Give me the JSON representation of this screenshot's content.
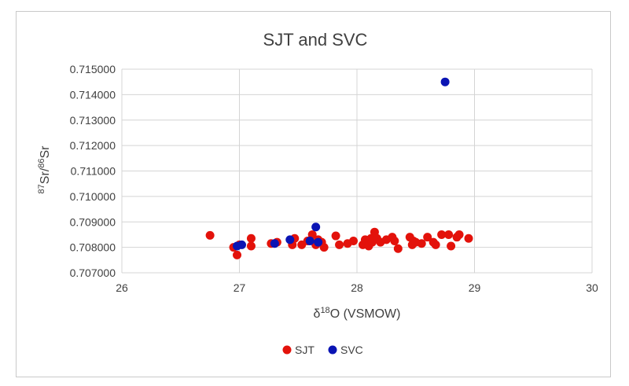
{
  "chart_data": {
    "type": "scatter",
    "title": "SJT and SVC",
    "xlabel_parts": [
      "δ",
      "18",
      "O (VSMOW)"
    ],
    "ylabel_parts": [
      "87",
      "Sr/",
      "86",
      "Sr"
    ],
    "xlim": [
      26,
      30
    ],
    "ylim": [
      0.707,
      0.715
    ],
    "xticks": [
      "26",
      "27",
      "28",
      "29",
      "30"
    ],
    "yticks": [
      "0.707000",
      "0.708000",
      "0.709000",
      "0.710000",
      "0.711000",
      "0.712000",
      "0.713000",
      "0.714000",
      "0.715000"
    ],
    "grid": true,
    "legend_position": "bottom",
    "series": [
      {
        "name": "SJT",
        "color": "#e3120b",
        "points": [
          [
            26.75,
            0.70847
          ],
          [
            26.95,
            0.708
          ],
          [
            26.98,
            0.7077
          ],
          [
            27.0,
            0.7081
          ],
          [
            27.1,
            0.70835
          ],
          [
            27.1,
            0.70805
          ],
          [
            27.27,
            0.70815
          ],
          [
            27.32,
            0.7082
          ],
          [
            27.45,
            0.7081
          ],
          [
            27.47,
            0.70835
          ],
          [
            27.53,
            0.7081
          ],
          [
            27.58,
            0.70825
          ],
          [
            27.62,
            0.7085
          ],
          [
            27.65,
            0.7081
          ],
          [
            27.67,
            0.7083
          ],
          [
            27.7,
            0.7082
          ],
          [
            27.72,
            0.708
          ],
          [
            27.82,
            0.70845
          ],
          [
            27.85,
            0.7081
          ],
          [
            27.92,
            0.70815
          ],
          [
            27.97,
            0.70825
          ],
          [
            28.05,
            0.7081
          ],
          [
            28.07,
            0.7083
          ],
          [
            28.09,
            0.7082
          ],
          [
            28.1,
            0.70805
          ],
          [
            28.12,
            0.70835
          ],
          [
            28.13,
            0.7082
          ],
          [
            28.15,
            0.7086
          ],
          [
            28.17,
            0.70835
          ],
          [
            28.2,
            0.7082
          ],
          [
            28.25,
            0.7083
          ],
          [
            28.3,
            0.7084
          ],
          [
            28.32,
            0.70825
          ],
          [
            28.35,
            0.70795
          ],
          [
            28.45,
            0.7084
          ],
          [
            28.47,
            0.7081
          ],
          [
            28.48,
            0.70825
          ],
          [
            28.5,
            0.7082
          ],
          [
            28.55,
            0.70815
          ],
          [
            28.6,
            0.7084
          ],
          [
            28.65,
            0.7082
          ],
          [
            28.67,
            0.7081
          ],
          [
            28.72,
            0.7085
          ],
          [
            28.78,
            0.7085
          ],
          [
            28.8,
            0.70805
          ],
          [
            28.85,
            0.7084
          ],
          [
            28.87,
            0.7085
          ],
          [
            28.95,
            0.70835
          ]
        ]
      },
      {
        "name": "SVC",
        "color": "#0a14b4",
        "points": [
          [
            26.98,
            0.70805
          ],
          [
            27.02,
            0.7081
          ],
          [
            27.3,
            0.70815
          ],
          [
            27.43,
            0.7083
          ],
          [
            27.6,
            0.70825
          ],
          [
            27.65,
            0.7088
          ],
          [
            27.67,
            0.7082
          ],
          [
            28.75,
            0.7145
          ]
        ]
      }
    ]
  }
}
